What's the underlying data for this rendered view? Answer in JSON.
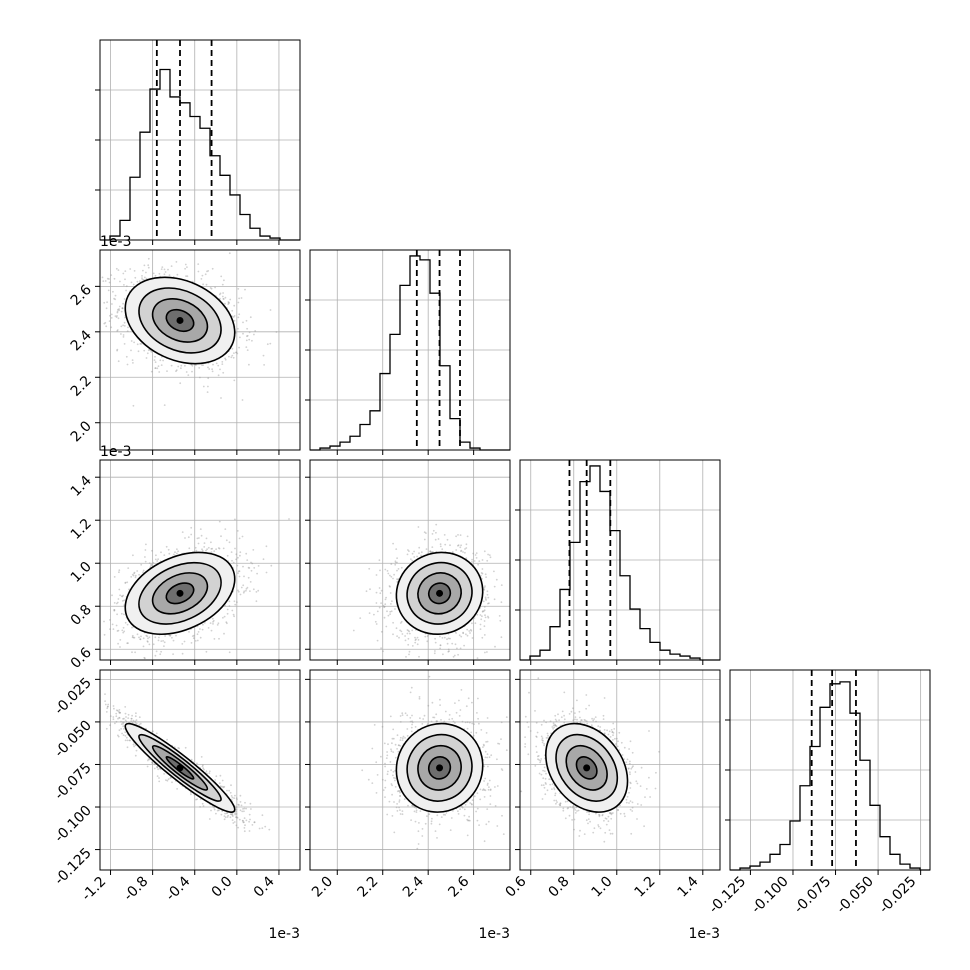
{
  "chart_data": {
    "type": "corner",
    "description_of_panels": "lower-triangle 2D density/contour panels, diagonal 1D histograms",
    "parameters": [
      {
        "index": 0,
        "range": [
          -0.0013,
          0.0006
        ],
        "ticks": [
          -0.0012,
          -0.0008,
          -0.0004,
          0.0,
          0.0004
        ],
        "tick_labels": [
          "-1.2",
          "-0.8",
          "-0.4",
          "0.0",
          "0.4"
        ],
        "offset_label": "1e-3",
        "quantiles": [
          -0.00076,
          -0.00054,
          -0.00024
        ],
        "histogram": [
          0.0,
          0.02,
          0.1,
          0.32,
          0.55,
          0.77,
          0.87,
          0.73,
          0.7,
          0.63,
          0.57,
          0.43,
          0.33,
          0.23,
          0.13,
          0.06,
          0.02,
          0.01,
          0.0,
          0.0
        ]
      },
      {
        "index": 1,
        "range": [
          0.00188,
          0.00276
        ],
        "ticks": [
          0.002,
          0.0022,
          0.0024,
          0.0026
        ],
        "tick_labels": [
          "2.0",
          "2.2",
          "2.4",
          "2.6"
        ],
        "offset_label": "1e-3",
        "quantiles": [
          0.00235,
          0.00245,
          0.00254
        ],
        "histogram": [
          0.0,
          0.01,
          0.02,
          0.04,
          0.07,
          0.13,
          0.2,
          0.39,
          0.59,
          0.84,
          0.99,
          0.97,
          0.8,
          0.43,
          0.16,
          0.04,
          0.01,
          0.0,
          0.0,
          0.0
        ]
      },
      {
        "index": 2,
        "range": [
          0.00055,
          0.00148
        ],
        "ticks": [
          0.0006,
          0.0008,
          0.001,
          0.0012,
          0.0014
        ],
        "tick_labels": [
          "0.6",
          "0.8",
          "1.0",
          "1.2",
          "1.4"
        ],
        "offset_label": "1e-3",
        "quantiles": [
          0.00078,
          0.00086,
          0.00097
        ],
        "histogram": [
          0.0,
          0.02,
          0.05,
          0.17,
          0.36,
          0.6,
          0.91,
          0.99,
          0.86,
          0.66,
          0.43,
          0.26,
          0.16,
          0.09,
          0.05,
          0.03,
          0.02,
          0.01,
          0.0,
          0.0
        ]
      },
      {
        "index": 3,
        "range": [
          -0.137,
          -0.0195
        ],
        "ticks": [
          -0.125,
          -0.1,
          -0.075,
          -0.05,
          -0.025
        ],
        "tick_labels": [
          "-0.125",
          "-0.100",
          "-0.075",
          "-0.050",
          "-0.025"
        ],
        "offset_label": "",
        "quantiles": [
          -0.089,
          -0.077,
          -0.063
        ],
        "histogram": [
          0.0,
          0.01,
          0.02,
          0.04,
          0.08,
          0.13,
          0.25,
          0.43,
          0.63,
          0.83,
          0.95,
          0.96,
          0.8,
          0.56,
          0.33,
          0.17,
          0.08,
          0.03,
          0.01,
          0.0
        ]
      }
    ],
    "pair_correlations": {
      "1-0": -0.28,
      "2-0": 0.35,
      "2-1": 0.05,
      "3-0": -0.94,
      "3-1": 0.05,
      "3-2": -0.3
    },
    "contour_levels_sigma": [
      0.5,
      1.0,
      1.5,
      2.0
    ],
    "grid": true
  }
}
